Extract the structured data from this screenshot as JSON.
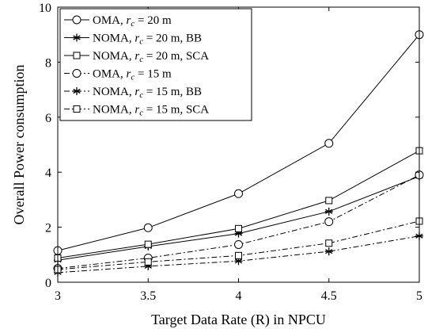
{
  "chart_data": {
    "type": "line",
    "xlabel": "Target Data Rate (R) in NPCU",
    "ylabel": "Overall Power consumption",
    "xlim": [
      3,
      5
    ],
    "ylim": [
      0,
      10
    ],
    "xticks": [
      "3",
      "3.5",
      "4",
      "4.5",
      "5"
    ],
    "yticks": [
      "0",
      "2",
      "4",
      "6",
      "8",
      "10"
    ],
    "x": [
      3,
      3.5,
      4,
      4.5,
      5
    ],
    "grid": false,
    "legend_position": "top-left",
    "series": [
      {
        "name": "OMA, r_c = 20 m",
        "label_main": "OMA, ",
        "label_var": "r",
        "label_sub": "c",
        "label_rest": " = 20 m",
        "line": "solid",
        "marker": "circle",
        "color": "#000000",
        "values": [
          1.15,
          1.98,
          3.22,
          5.05,
          9.0
        ]
      },
      {
        "name": "NOMA, r_c = 20 m, BB",
        "label_main": "NOMA, ",
        "label_var": "r",
        "label_sub": "c",
        "label_rest": " = 20 m, BB",
        "line": "solid",
        "marker": "star",
        "color": "#000000",
        "values": [
          0.8,
          1.3,
          1.77,
          2.57,
          3.85
        ]
      },
      {
        "name": "NOMA, r_c = 20 m, SCA",
        "label_main": "NOMA, ",
        "label_var": "r",
        "label_sub": "c",
        "label_rest": " = 20 m, SCA",
        "line": "solid",
        "marker": "square",
        "color": "#000000",
        "values": [
          0.88,
          1.38,
          1.95,
          2.97,
          4.78
        ]
      },
      {
        "name": "OMA, r_c = 15 m",
        "label_main": "OMA, ",
        "label_var": "r",
        "label_sub": "c",
        "label_rest": " = 15 m",
        "line": "dashdot",
        "marker": "circle",
        "color": "#000000",
        "values": [
          0.5,
          0.88,
          1.37,
          2.2,
          3.9
        ]
      },
      {
        "name": "NOMA, r_c = 15 m, BB",
        "label_main": "NOMA, ",
        "label_var": "r",
        "label_sub": "c",
        "label_rest": " = 15 m, BB",
        "line": "dashdot",
        "marker": "star",
        "color": "#000000",
        "values": [
          0.35,
          0.58,
          0.77,
          1.12,
          1.68
        ]
      },
      {
        "name": "NOMA, r_c = 15 m, SCA",
        "label_main": "NOMA, ",
        "label_var": "r",
        "label_sub": "c",
        "label_rest": " = 15 m, SCA",
        "line": "dashdot",
        "marker": "square",
        "color": "#000000",
        "values": [
          0.46,
          0.74,
          0.97,
          1.42,
          2.22
        ]
      }
    ]
  }
}
